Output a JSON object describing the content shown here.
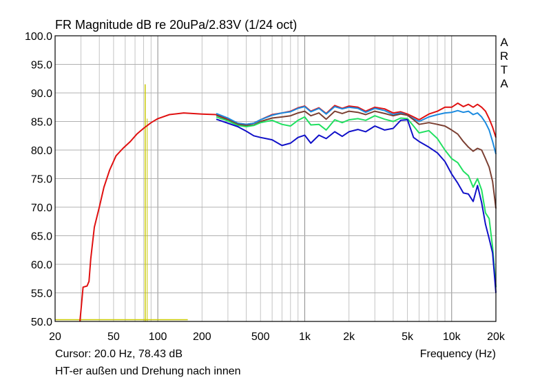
{
  "header": {
    "title": "FR Magnitude dB re 20uPa/2.83V (1/24 oct)",
    "brand": [
      "A",
      "R",
      "T",
      "A"
    ]
  },
  "footer": {
    "cursor": "Cursor: 20.0 Hz, 78.43 dB",
    "xlabel": "Frequency (Hz)",
    "note": "HT-er außen und Drehung nach innen"
  },
  "chart_data": {
    "type": "line",
    "title": "FR Magnitude dB re 20uPa/2.83V (1/24 oct)",
    "xlabel": "Frequency (Hz)",
    "ylabel": "",
    "xscale": "log",
    "xlim": [
      20,
      20000
    ],
    "ylim": [
      50,
      100
    ],
    "grid": true,
    "x_ticks": [
      20,
      50,
      100,
      200,
      500,
      1000,
      2000,
      5000,
      10000,
      20000
    ],
    "x_tick_labels": [
      "20",
      "50",
      "100",
      "200",
      "500",
      "1k",
      "2k",
      "5k",
      "10k",
      "20k"
    ],
    "y_ticks": [
      50,
      55,
      60,
      65,
      70,
      75,
      80,
      85,
      90,
      95,
      100
    ],
    "y_tick_labels": [
      "50.0",
      "55.0",
      "60.0",
      "65.0",
      "70.0",
      "75.0",
      "80.0",
      "85.0",
      "90.0",
      "95.0",
      "100.0"
    ],
    "cursor": {
      "x": 20,
      "y": 78.43,
      "text": "Cursor: 20.0 Hz, 78.43 dB"
    },
    "markers": [
      {
        "type": "vertical",
        "x": 82,
        "y_from": 50,
        "y_to": 91.5,
        "color": "#c8c800"
      },
      {
        "type": "horizontal",
        "y": 50.3,
        "x_from": 20,
        "x_to": 160,
        "color": "#c8c800"
      }
    ],
    "series": [
      {
        "color": "#e01010",
        "points": [
          [
            29.5,
            50
          ],
          [
            30,
            52
          ],
          [
            31,
            56
          ],
          [
            33,
            56.2
          ],
          [
            34,
            57
          ],
          [
            35,
            61
          ],
          [
            37,
            66.5
          ],
          [
            40,
            70
          ],
          [
            43,
            73.5
          ],
          [
            47,
            76.5
          ],
          [
            52,
            79
          ],
          [
            58,
            80.3
          ],
          [
            65,
            81.5
          ],
          [
            72,
            82.8
          ],
          [
            80,
            83.8
          ],
          [
            90,
            84.8
          ],
          [
            100,
            85.5
          ],
          [
            120,
            86.2
          ],
          [
            150,
            86.5
          ],
          [
            200,
            86.3
          ],
          [
            250,
            86.2
          ],
          [
            300,
            85.5
          ],
          [
            350,
            84.7
          ],
          [
            400,
            84.5
          ],
          [
            450,
            84.7
          ],
          [
            500,
            85.3
          ],
          [
            600,
            86.2
          ],
          [
            700,
            86.5
          ],
          [
            800,
            86.8
          ],
          [
            900,
            87.4
          ],
          [
            1000,
            87.7
          ],
          [
            1100,
            86.8
          ],
          [
            1250,
            87.4
          ],
          [
            1400,
            86.4
          ],
          [
            1600,
            87.8
          ],
          [
            1800,
            87.3
          ],
          [
            2000,
            87.7
          ],
          [
            2300,
            87.5
          ],
          [
            2600,
            86.8
          ],
          [
            3000,
            87.5
          ],
          [
            3500,
            87.2
          ],
          [
            4000,
            86.5
          ],
          [
            4500,
            86.7
          ],
          [
            5000,
            86.3
          ],
          [
            5500,
            85.8
          ],
          [
            6000,
            85.3
          ],
          [
            7000,
            86.3
          ],
          [
            8000,
            86.8
          ],
          [
            9000,
            87.5
          ],
          [
            10000,
            87.5
          ],
          [
            11000,
            88.2
          ],
          [
            12000,
            87.6
          ],
          [
            13000,
            88
          ],
          [
            14000,
            87.5
          ],
          [
            15000,
            88
          ],
          [
            16000,
            87.5
          ],
          [
            17000,
            86.8
          ],
          [
            18000,
            85.5
          ],
          [
            19000,
            84
          ],
          [
            20000,
            82.2
          ]
        ]
      },
      {
        "color": "#1a8ae0",
        "points": [
          [
            250,
            86.4
          ],
          [
            300,
            85.6
          ],
          [
            350,
            84.7
          ],
          [
            400,
            84.5
          ],
          [
            450,
            84.7
          ],
          [
            500,
            85.3
          ],
          [
            600,
            86.1
          ],
          [
            700,
            86.5
          ],
          [
            800,
            86.7
          ],
          [
            900,
            87.3
          ],
          [
            1000,
            87.6
          ],
          [
            1100,
            86.7
          ],
          [
            1250,
            87.3
          ],
          [
            1400,
            86.3
          ],
          [
            1600,
            87.6
          ],
          [
            1800,
            87.2
          ],
          [
            2000,
            87.5
          ],
          [
            2300,
            87.3
          ],
          [
            2600,
            86.6
          ],
          [
            3000,
            87.3
          ],
          [
            3500,
            86.9
          ],
          [
            4000,
            86.2
          ],
          [
            4500,
            86.5
          ],
          [
            5000,
            86.1
          ],
          [
            5500,
            85.5
          ],
          [
            6000,
            85
          ],
          [
            7000,
            85.8
          ],
          [
            8000,
            86.2
          ],
          [
            9000,
            86.5
          ],
          [
            10000,
            86.6
          ],
          [
            11000,
            86.9
          ],
          [
            12000,
            86.6
          ],
          [
            13000,
            86.8
          ],
          [
            14000,
            86.2
          ],
          [
            15000,
            86.5
          ],
          [
            16000,
            85.8
          ],
          [
            17000,
            84.8
          ],
          [
            18000,
            83.5
          ],
          [
            19000,
            81.5
          ],
          [
            20000,
            79.3
          ]
        ]
      },
      {
        "color": "#7b3f32",
        "points": [
          [
            250,
            86.1
          ],
          [
            300,
            85.3
          ],
          [
            350,
            84.5
          ],
          [
            400,
            84.3
          ],
          [
            450,
            84.4
          ],
          [
            500,
            85
          ],
          [
            600,
            85.6
          ],
          [
            700,
            85.8
          ],
          [
            800,
            86
          ],
          [
            900,
            86.5
          ],
          [
            1000,
            86.8
          ],
          [
            1100,
            86
          ],
          [
            1250,
            86.5
          ],
          [
            1400,
            85.4
          ],
          [
            1600,
            86.8
          ],
          [
            1800,
            86.4
          ],
          [
            2000,
            86.8
          ],
          [
            2300,
            86.6
          ],
          [
            2600,
            86.2
          ],
          [
            3000,
            86.8
          ],
          [
            3500,
            86.4
          ],
          [
            4000,
            86
          ],
          [
            4500,
            86.3
          ],
          [
            5000,
            86.1
          ],
          [
            5500,
            85.3
          ],
          [
            6000,
            84.5
          ],
          [
            7000,
            84.8
          ],
          [
            8000,
            84.5
          ],
          [
            9000,
            84.2
          ],
          [
            10000,
            83.5
          ],
          [
            11000,
            82.8
          ],
          [
            12000,
            81.5
          ],
          [
            13000,
            80.5
          ],
          [
            14000,
            79.8
          ],
          [
            15000,
            80.3
          ],
          [
            16000,
            80
          ],
          [
            17000,
            78.5
          ],
          [
            18000,
            77
          ],
          [
            19000,
            74.5
          ],
          [
            20000,
            69.8
          ]
        ]
      },
      {
        "color": "#20e060",
        "points": [
          [
            250,
            85.8
          ],
          [
            300,
            85.1
          ],
          [
            350,
            84.3
          ],
          [
            400,
            84.1
          ],
          [
            450,
            84.3
          ],
          [
            500,
            84.8
          ],
          [
            600,
            85.2
          ],
          [
            700,
            84.5
          ],
          [
            800,
            84.2
          ],
          [
            900,
            85.2
          ],
          [
            1000,
            85.8
          ],
          [
            1100,
            84.4
          ],
          [
            1250,
            84.5
          ],
          [
            1400,
            83.5
          ],
          [
            1600,
            85.3
          ],
          [
            1800,
            84.8
          ],
          [
            2000,
            85.3
          ],
          [
            2300,
            85.5
          ],
          [
            2600,
            85.2
          ],
          [
            3000,
            86
          ],
          [
            3500,
            85.4
          ],
          [
            4000,
            85
          ],
          [
            4500,
            85.6
          ],
          [
            5000,
            85.5
          ],
          [
            5500,
            84.2
          ],
          [
            6000,
            83
          ],
          [
            7000,
            83.4
          ],
          [
            8000,
            82
          ],
          [
            9000,
            80
          ],
          [
            10000,
            78.5
          ],
          [
            11000,
            77.8
          ],
          [
            12000,
            76.3
          ],
          [
            13000,
            75.5
          ],
          [
            14000,
            73.5
          ],
          [
            15000,
            75
          ],
          [
            16000,
            73
          ],
          [
            17000,
            69
          ],
          [
            18000,
            68
          ],
          [
            19000,
            63
          ],
          [
            20000,
            56
          ]
        ]
      },
      {
        "color": "#1010c8",
        "points": [
          [
            250,
            85.4
          ],
          [
            300,
            84.7
          ],
          [
            350,
            84.1
          ],
          [
            400,
            83.3
          ],
          [
            450,
            82.5
          ],
          [
            500,
            82.2
          ],
          [
            600,
            81.8
          ],
          [
            700,
            80.8
          ],
          [
            800,
            81.2
          ],
          [
            900,
            82.2
          ],
          [
            1000,
            82.6
          ],
          [
            1100,
            81.2
          ],
          [
            1250,
            82.6
          ],
          [
            1400,
            82
          ],
          [
            1600,
            83.2
          ],
          [
            1800,
            82.4
          ],
          [
            2000,
            83.2
          ],
          [
            2300,
            83.6
          ],
          [
            2600,
            83.2
          ],
          [
            3000,
            84.2
          ],
          [
            3500,
            83.5
          ],
          [
            4000,
            83.8
          ],
          [
            4500,
            85.2
          ],
          [
            5000,
            85.3
          ],
          [
            5500,
            82.2
          ],
          [
            6000,
            81.5
          ],
          [
            7000,
            80.5
          ],
          [
            8000,
            79.5
          ],
          [
            9000,
            78
          ],
          [
            10000,
            75.8
          ],
          [
            11000,
            74.2
          ],
          [
            12000,
            72.5
          ],
          [
            13000,
            72.3
          ],
          [
            14000,
            71
          ],
          [
            15000,
            73.8
          ],
          [
            16000,
            70.8
          ],
          [
            17000,
            67
          ],
          [
            18000,
            64.5
          ],
          [
            19000,
            62
          ],
          [
            20000,
            55
          ]
        ]
      }
    ]
  }
}
